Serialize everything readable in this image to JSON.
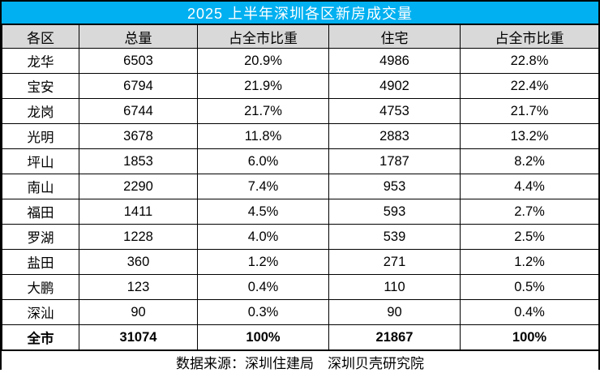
{
  "title": "2025 上半年深圳各区新房成交量",
  "colors": {
    "title_bg": "#00B0F0",
    "title_text": "#FFFFFF",
    "header_bg": "#D9D9D9",
    "row_bg": "#FFFFFF",
    "border": "#000000"
  },
  "table": {
    "headers": [
      "各区",
      "总量",
      "占全市比重",
      "住宅",
      "占全市比重"
    ],
    "rows": [
      {
        "district": "龙华",
        "total": "6503",
        "total_share": "20.9%",
        "residential": "4986",
        "residential_share": "22.8%"
      },
      {
        "district": "宝安",
        "total": "6794",
        "total_share": "21.9%",
        "residential": "4902",
        "residential_share": "22.4%"
      },
      {
        "district": "龙岗",
        "total": "6744",
        "total_share": "21.7%",
        "residential": "4753",
        "residential_share": "21.7%"
      },
      {
        "district": "光明",
        "total": "3678",
        "total_share": "11.8%",
        "residential": "2883",
        "residential_share": "13.2%"
      },
      {
        "district": "坪山",
        "total": "1853",
        "total_share": "6.0%",
        "residential": "1787",
        "residential_share": "8.2%"
      },
      {
        "district": "南山",
        "total": "2290",
        "total_share": "7.4%",
        "residential": "953",
        "residential_share": "4.4%"
      },
      {
        "district": "福田",
        "total": "1411",
        "total_share": "4.5%",
        "residential": "593",
        "residential_share": "2.7%"
      },
      {
        "district": "罗湖",
        "total": "1228",
        "total_share": "4.0%",
        "residential": "539",
        "residential_share": "2.5%"
      },
      {
        "district": "盐田",
        "total": "360",
        "total_share": "1.2%",
        "residential": "271",
        "residential_share": "1.2%"
      },
      {
        "district": "大鹏",
        "total": "123",
        "total_share": "0.4%",
        "residential": "110",
        "residential_share": "0.5%"
      },
      {
        "district": "深汕",
        "total": "90",
        "total_share": "0.3%",
        "residential": "90",
        "residential_share": "0.4%"
      },
      {
        "district": "全市",
        "total": "31074",
        "total_share": "100%",
        "residential": "21867",
        "residential_share": "100%",
        "bold": true
      }
    ]
  },
  "footer": {
    "text": "数据来源：深圳住建局　深圳贝壳研究院"
  },
  "chart_data": {
    "type": "table",
    "title": "2025 上半年深圳各区新房成交量",
    "columns": [
      "各区",
      "总量",
      "占全市比重",
      "住宅",
      "占全市比重"
    ],
    "rows": [
      [
        "龙华",
        6503,
        "20.9%",
        4986,
        "22.8%"
      ],
      [
        "宝安",
        6794,
        "21.9%",
        4902,
        "22.4%"
      ],
      [
        "龙岗",
        6744,
        "21.7%",
        4753,
        "21.7%"
      ],
      [
        "光明",
        3678,
        "11.8%",
        2883,
        "13.2%"
      ],
      [
        "坪山",
        1853,
        "6.0%",
        1787,
        "8.2%"
      ],
      [
        "南山",
        2290,
        "7.4%",
        953,
        "4.4%"
      ],
      [
        "福田",
        1411,
        "4.5%",
        593,
        "2.7%"
      ],
      [
        "罗湖",
        1228,
        "4.0%",
        539,
        "2.5%"
      ],
      [
        "盐田",
        360,
        "1.2%",
        271,
        "1.2%"
      ],
      [
        "大鹏",
        123,
        "0.4%",
        110,
        "0.5%"
      ],
      [
        "深汕",
        90,
        "0.3%",
        90,
        "0.4%"
      ],
      [
        "全市",
        31074,
        "100%",
        21867,
        "100%"
      ]
    ],
    "source": "数据来源：深圳住建局　深圳贝壳研究院"
  }
}
